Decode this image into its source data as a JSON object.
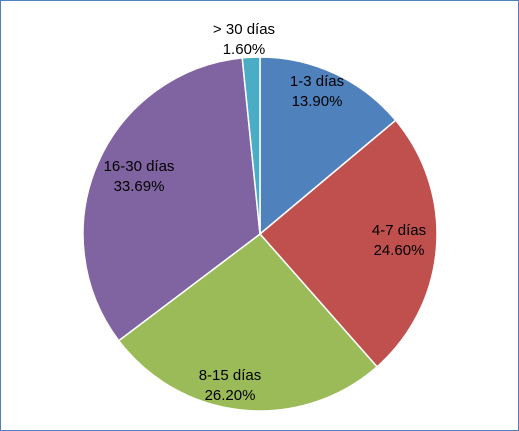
{
  "chart_data": {
    "type": "pie",
    "title": "",
    "slices": [
      {
        "label": "1-3 días",
        "value": 13.9,
        "display": "13.90%",
        "color": "#4f81bd"
      },
      {
        "label": "4-7 días",
        "value": 24.6,
        "display": "24.60%",
        "color": "#c0504d"
      },
      {
        "label": "8-15 días",
        "value": 26.2,
        "display": "26.20%",
        "color": "#9bbb59"
      },
      {
        "label": "16-30 días",
        "value": 33.69,
        "display": "33.69%",
        "color": "#8064a2"
      },
      {
        "label": "> 30 días",
        "value": 1.6,
        "display": "1.60%",
        "color": "#4bacc6"
      }
    ],
    "start_angle": "12 o'clock",
    "direction": "clockwise",
    "legend": "none",
    "border_color": "#4f81bd"
  }
}
